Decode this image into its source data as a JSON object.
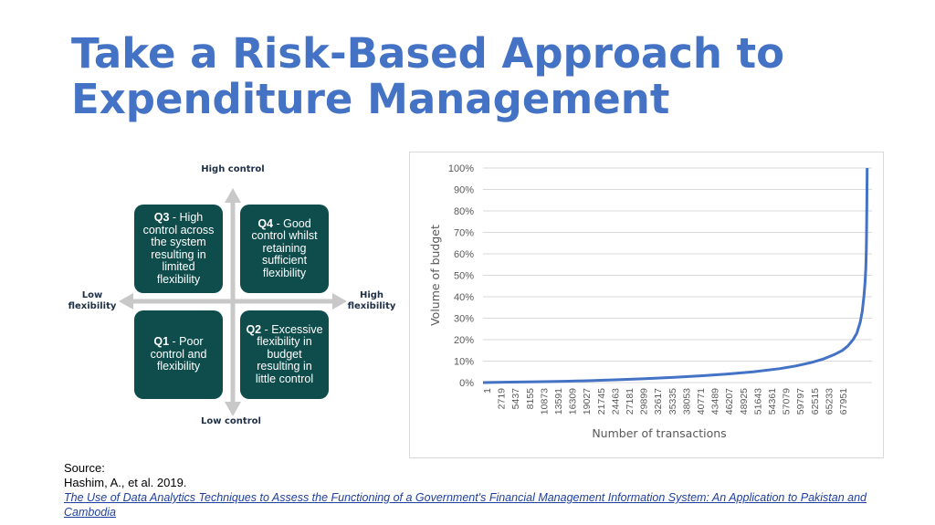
{
  "slide": {
    "title_line1": "Take a Risk-Based Approach to",
    "title_line2": "Expenditure Management",
    "accent_color": "#4472c4"
  },
  "quadrant": {
    "top_label": "High control",
    "bottom_label": "Low control",
    "left_label_line1": "Low",
    "left_label_line2": "flexibility",
    "right_label_line1": "High",
    "right_label_line2": "flexibility",
    "box_color": "#0f4c4c",
    "q3": {
      "tag": "Q3",
      "text": " - High control across the system resulting in limited flexibility"
    },
    "q4": {
      "tag": "Q4",
      "text": " - Good control whilst retaining sufficient flexibility"
    },
    "q1": {
      "tag": "Q1",
      "text": " - Poor control and flexibility"
    },
    "q2": {
      "tag": "Q2",
      "text": " - Excessive flexibility in budget resulting in little control"
    }
  },
  "chart_data": {
    "type": "line",
    "title": "",
    "xlabel": "Number of transactions",
    "ylabel": "Volume of budget",
    "x_ticks": [
      "1",
      "2719",
      "5437",
      "8155",
      "10873",
      "13591",
      "16309",
      "19027",
      "21745",
      "24463",
      "27181",
      "29899",
      "32617",
      "35335",
      "38053",
      "40771",
      "43489",
      "46207",
      "48925",
      "51643",
      "54361",
      "57079",
      "59797",
      "62515",
      "65233",
      "67951"
    ],
    "y_ticks": [
      "0%",
      "10%",
      "20%",
      "30%",
      "40%",
      "50%",
      "60%",
      "70%",
      "80%",
      "90%",
      "100%"
    ],
    "ylim": [
      0,
      100
    ],
    "xlim": [
      1,
      72000
    ],
    "grid": true,
    "line_color": "#4472c4",
    "series": [
      {
        "x": [
          1,
          5000,
          10000,
          15000,
          20000,
          25000,
          30000,
          35000,
          40000,
          45000,
          50000,
          55000,
          58000,
          61000,
          63000,
          65000,
          66500,
          67500,
          68500,
          69200,
          69800,
          70200,
          70500,
          70700,
          70850,
          70950,
          71000,
          71050,
          71100
        ],
        "y": [
          0,
          0.2,
          0.4,
          0.6,
          0.9,
          1.3,
          1.8,
          2.4,
          3.1,
          3.9,
          5,
          6.5,
          7.8,
          9.5,
          11,
          13,
          15,
          17,
          20,
          23,
          28,
          33,
          40,
          46,
          53,
          62,
          72,
          85,
          100
        ]
      }
    ]
  },
  "source": {
    "label": "Source:",
    "citation": "Hashim, A., et al. 2019.",
    "link_text": "The Use of Data Analytics Techniques to Assess the Functioning of a Government's Financial Management Information System: An Application to Pakistan and Cambodia"
  }
}
